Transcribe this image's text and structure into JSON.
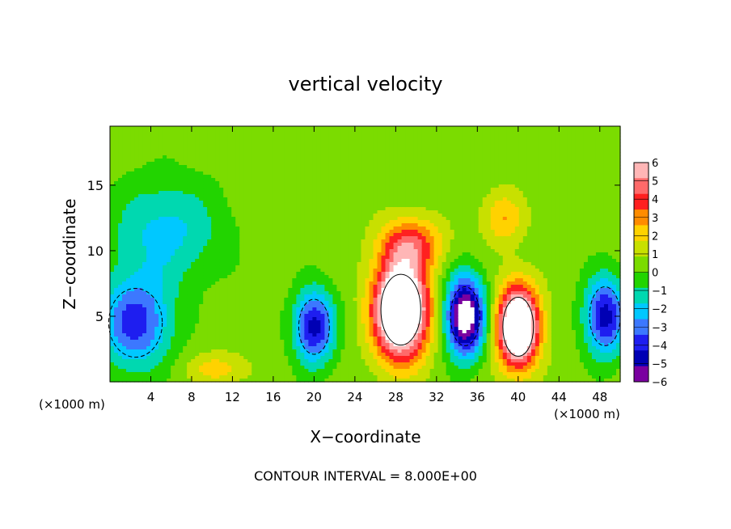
{
  "chart_data": {
    "type": "heatmap",
    "title": "vertical velocity",
    "xlabel": "X−coordinate",
    "ylabel": "Z−coordinate",
    "xunit_left": "(×1000 m)",
    "xunit_right": "(×1000 m)",
    "footer": "CONTOUR INTERVAL = 8.000E+00",
    "xlim": [
      0,
      50
    ],
    "ylim": [
      0,
      19.5
    ],
    "xticks": [
      "4",
      "8",
      "12",
      "16",
      "20",
      "24",
      "28",
      "32",
      "36",
      "40",
      "44",
      "48"
    ],
    "xtick_values": [
      4,
      8,
      12,
      16,
      20,
      24,
      28,
      32,
      36,
      40,
      44,
      48
    ],
    "yticks": [
      "5",
      "10",
      "15"
    ],
    "ytick_values": [
      5,
      10,
      15
    ],
    "colorbar": {
      "labels": [
        "6",
        "5",
        "4",
        "3",
        "2",
        "1",
        "0",
        "−1",
        "−2",
        "−3",
        "−4",
        "−5",
        "−6"
      ],
      "colors": [
        "#ffb6b6",
        "#ff6a6a",
        "#ff2020",
        "#ff8c00",
        "#ffd200",
        "#c8e000",
        "#7bdc00",
        "#22d400",
        "#00d8b0",
        "#00c8ff",
        "#3c78ff",
        "#1e1ef0",
        "#0000b4",
        "#7a00a0"
      ],
      "range": [
        -6,
        6
      ]
    },
    "features": [
      {
        "kind": "updraft",
        "x": 28.5,
        "z": 5.5,
        "sx": 2.6,
        "sz": 3.6,
        "amp": 12
      },
      {
        "kind": "updraft",
        "x": 40,
        "z": 4.2,
        "sx": 2.0,
        "sz": 3.0,
        "amp": 11
      },
      {
        "kind": "downdraft",
        "x": 34.8,
        "z": 5.0,
        "sx": 1.9,
        "sz": 3.0,
        "amp": -9
      },
      {
        "kind": "downdraft",
        "x": 20,
        "z": 4.2,
        "sx": 2.0,
        "sz": 2.8,
        "amp": -6
      },
      {
        "kind": "downdraft",
        "x": 2.5,
        "z": 4.5,
        "sx": 3.5,
        "sz": 3.5,
        "amp": -5
      },
      {
        "kind": "downdraft",
        "x": 48.5,
        "z": 5.0,
        "sx": 2.0,
        "sz": 3.0,
        "amp": -6
      },
      {
        "kind": "downdraft",
        "x": 5.5,
        "z": 11.5,
        "sx": 5.5,
        "sz": 4.0,
        "amp": -2.8
      },
      {
        "kind": "updraft",
        "x": 38.5,
        "z": 12.5,
        "sx": 2.0,
        "sz": 2.0,
        "amp": 2.5
      },
      {
        "kind": "updraft",
        "x": 29.5,
        "z": 10.5,
        "sx": 3.0,
        "sz": 2.0,
        "amp": 4
      },
      {
        "kind": "updraft",
        "x": 10.5,
        "z": 1.0,
        "sx": 3.0,
        "sz": 1.2,
        "amp": 2.0
      }
    ]
  }
}
